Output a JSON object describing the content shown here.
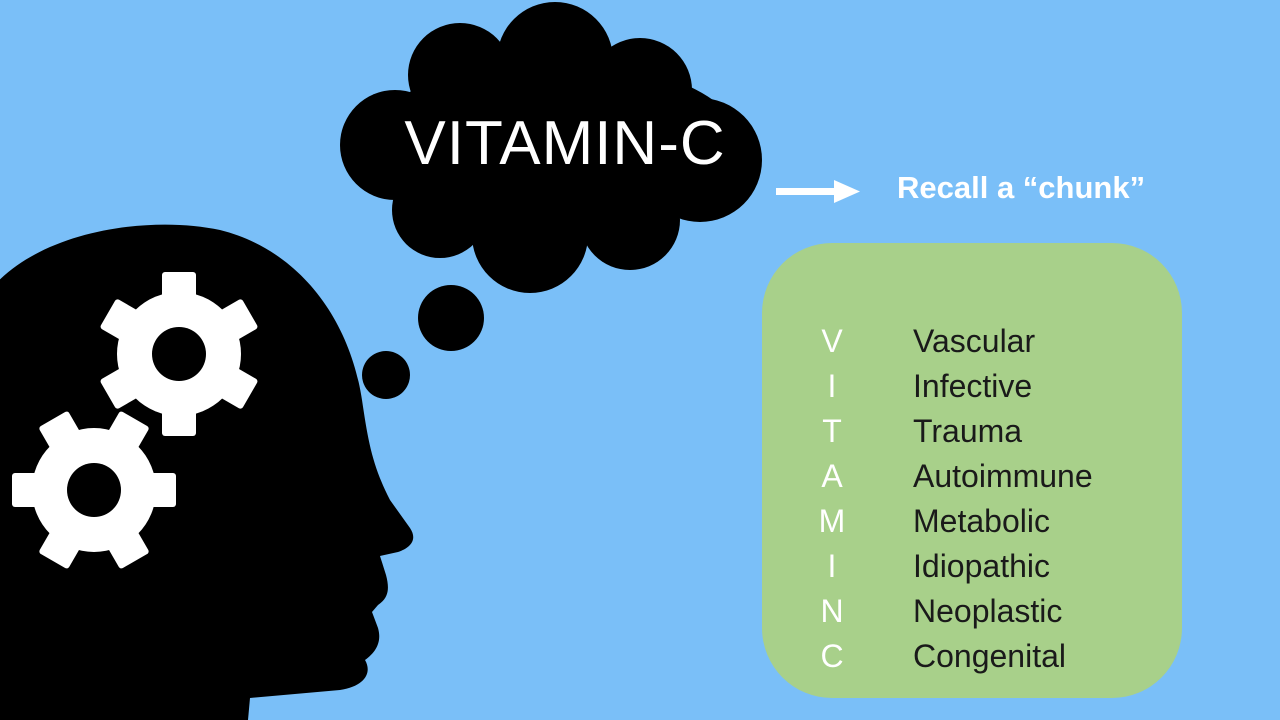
{
  "thought_cloud": {
    "text": "VITAMIN-C"
  },
  "arrow_label": "Recall a “chunk”",
  "mnemonic": {
    "items": [
      {
        "letter": "V",
        "word": "Vascular"
      },
      {
        "letter": "I",
        "word": "Infective"
      },
      {
        "letter": "T",
        "word": "Trauma"
      },
      {
        "letter": "A",
        "word": "Autoimmune"
      },
      {
        "letter": "M",
        "word": "Metabolic"
      },
      {
        "letter": "I",
        "word": "Idiopathic"
      },
      {
        "letter": "N",
        "word": "Neoplastic"
      },
      {
        "letter": "C",
        "word": "Congenital"
      }
    ]
  },
  "colors": {
    "background": "#7abff8",
    "silhouette": "#000000",
    "gears": "#ffffff",
    "mnemonic_box": "#a8d08a",
    "arrow": "#ffffff"
  },
  "icons": [
    "head-silhouette-icon",
    "gear-icon",
    "thought-cloud-icon",
    "arrow-right-icon"
  ]
}
